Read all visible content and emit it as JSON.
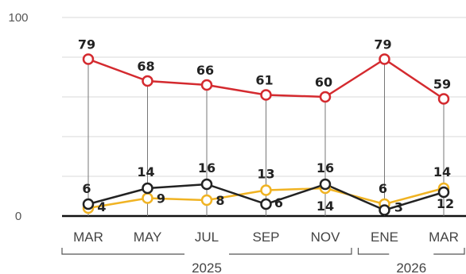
{
  "chart_data": {
    "type": "line",
    "categories": [
      "MAR",
      "MAY",
      "JUL",
      "SEP",
      "NOV",
      "ENE",
      "MAR"
    ],
    "years": [
      {
        "label": "2025",
        "from": 0,
        "to": 4
      },
      {
        "label": "2026",
        "from": 5,
        "to": 6
      }
    ],
    "ylim": [
      0,
      100
    ],
    "yticks": [
      {
        "value": 0,
        "label": "0"
      },
      {
        "value": 100,
        "label": "100"
      }
    ],
    "grid": true,
    "series": [
      {
        "color": "#d42a2f",
        "values": [
          79,
          68,
          66,
          61,
          60,
          79,
          59
        ],
        "labels": [
          "79",
          "68",
          "66",
          "61",
          "60",
          "79",
          "59"
        ]
      },
      {
        "color": "#222222",
        "values": [
          6,
          14,
          16,
          6,
          16,
          3,
          12
        ],
        "labels": [
          "6",
          "14",
          "16",
          "6",
          "16",
          "3",
          "12"
        ]
      },
      {
        "color": "#f0b323",
        "values": [
          4,
          9,
          8,
          13,
          14,
          6,
          14
        ],
        "labels": [
          "4",
          "9",
          "8",
          "13",
          "14",
          "6",
          "14"
        ]
      }
    ]
  }
}
